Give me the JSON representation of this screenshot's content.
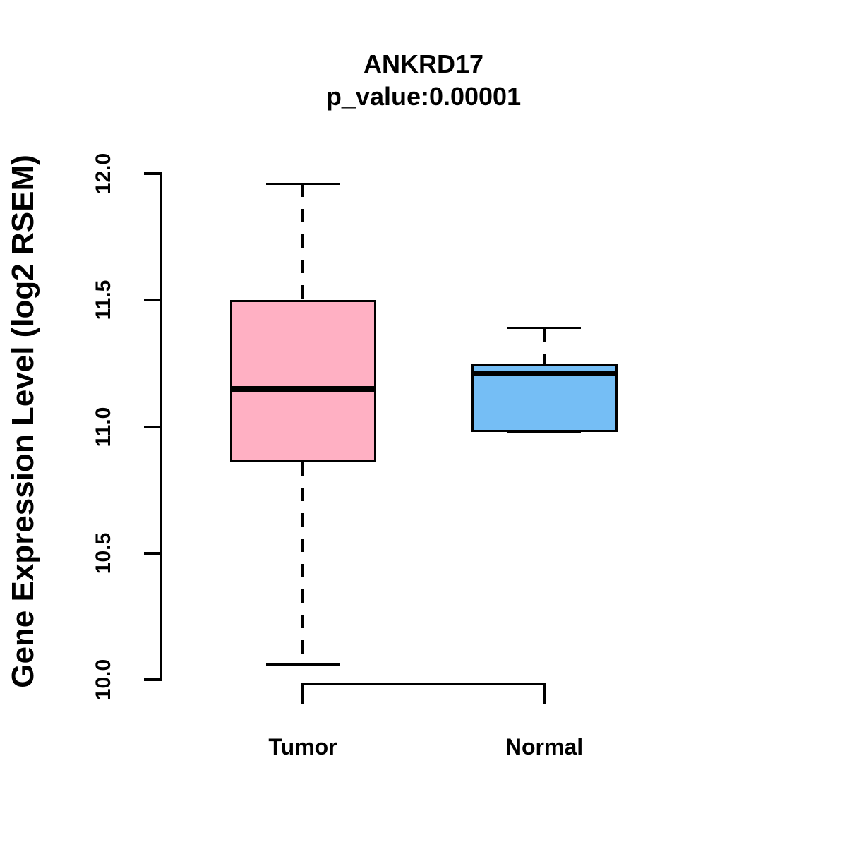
{
  "chart_data": {
    "type": "boxplot",
    "title": "ANKRD17",
    "subtitle": "p_value:0.00001",
    "ylabel": "Gene Expression Level (log2 RSEM)",
    "xlabel": "",
    "ylim": [
      10.0,
      12.0
    ],
    "ytick_labels": [
      "10.0",
      "10.5",
      "11.0",
      "11.5",
      "12.0"
    ],
    "ytick_values": [
      10.0,
      10.5,
      11.0,
      11.5,
      12.0
    ],
    "categories": [
      "Tumor",
      "Normal"
    ],
    "grid": false,
    "legend_position": "none",
    "background_color": "#FFFFFF",
    "line_color": "#000000",
    "series": [
      {
        "name": "Tumor",
        "fill_color": "#FFB0C3",
        "min": 10.06,
        "q1": 10.86,
        "median": 11.15,
        "q3": 11.5,
        "max": 11.96
      },
      {
        "name": "Normal",
        "fill_color": "#75BEF5",
        "min": 10.98,
        "q1": 10.98,
        "median": 11.21,
        "q3": 11.25,
        "max": 11.39
      }
    ]
  }
}
